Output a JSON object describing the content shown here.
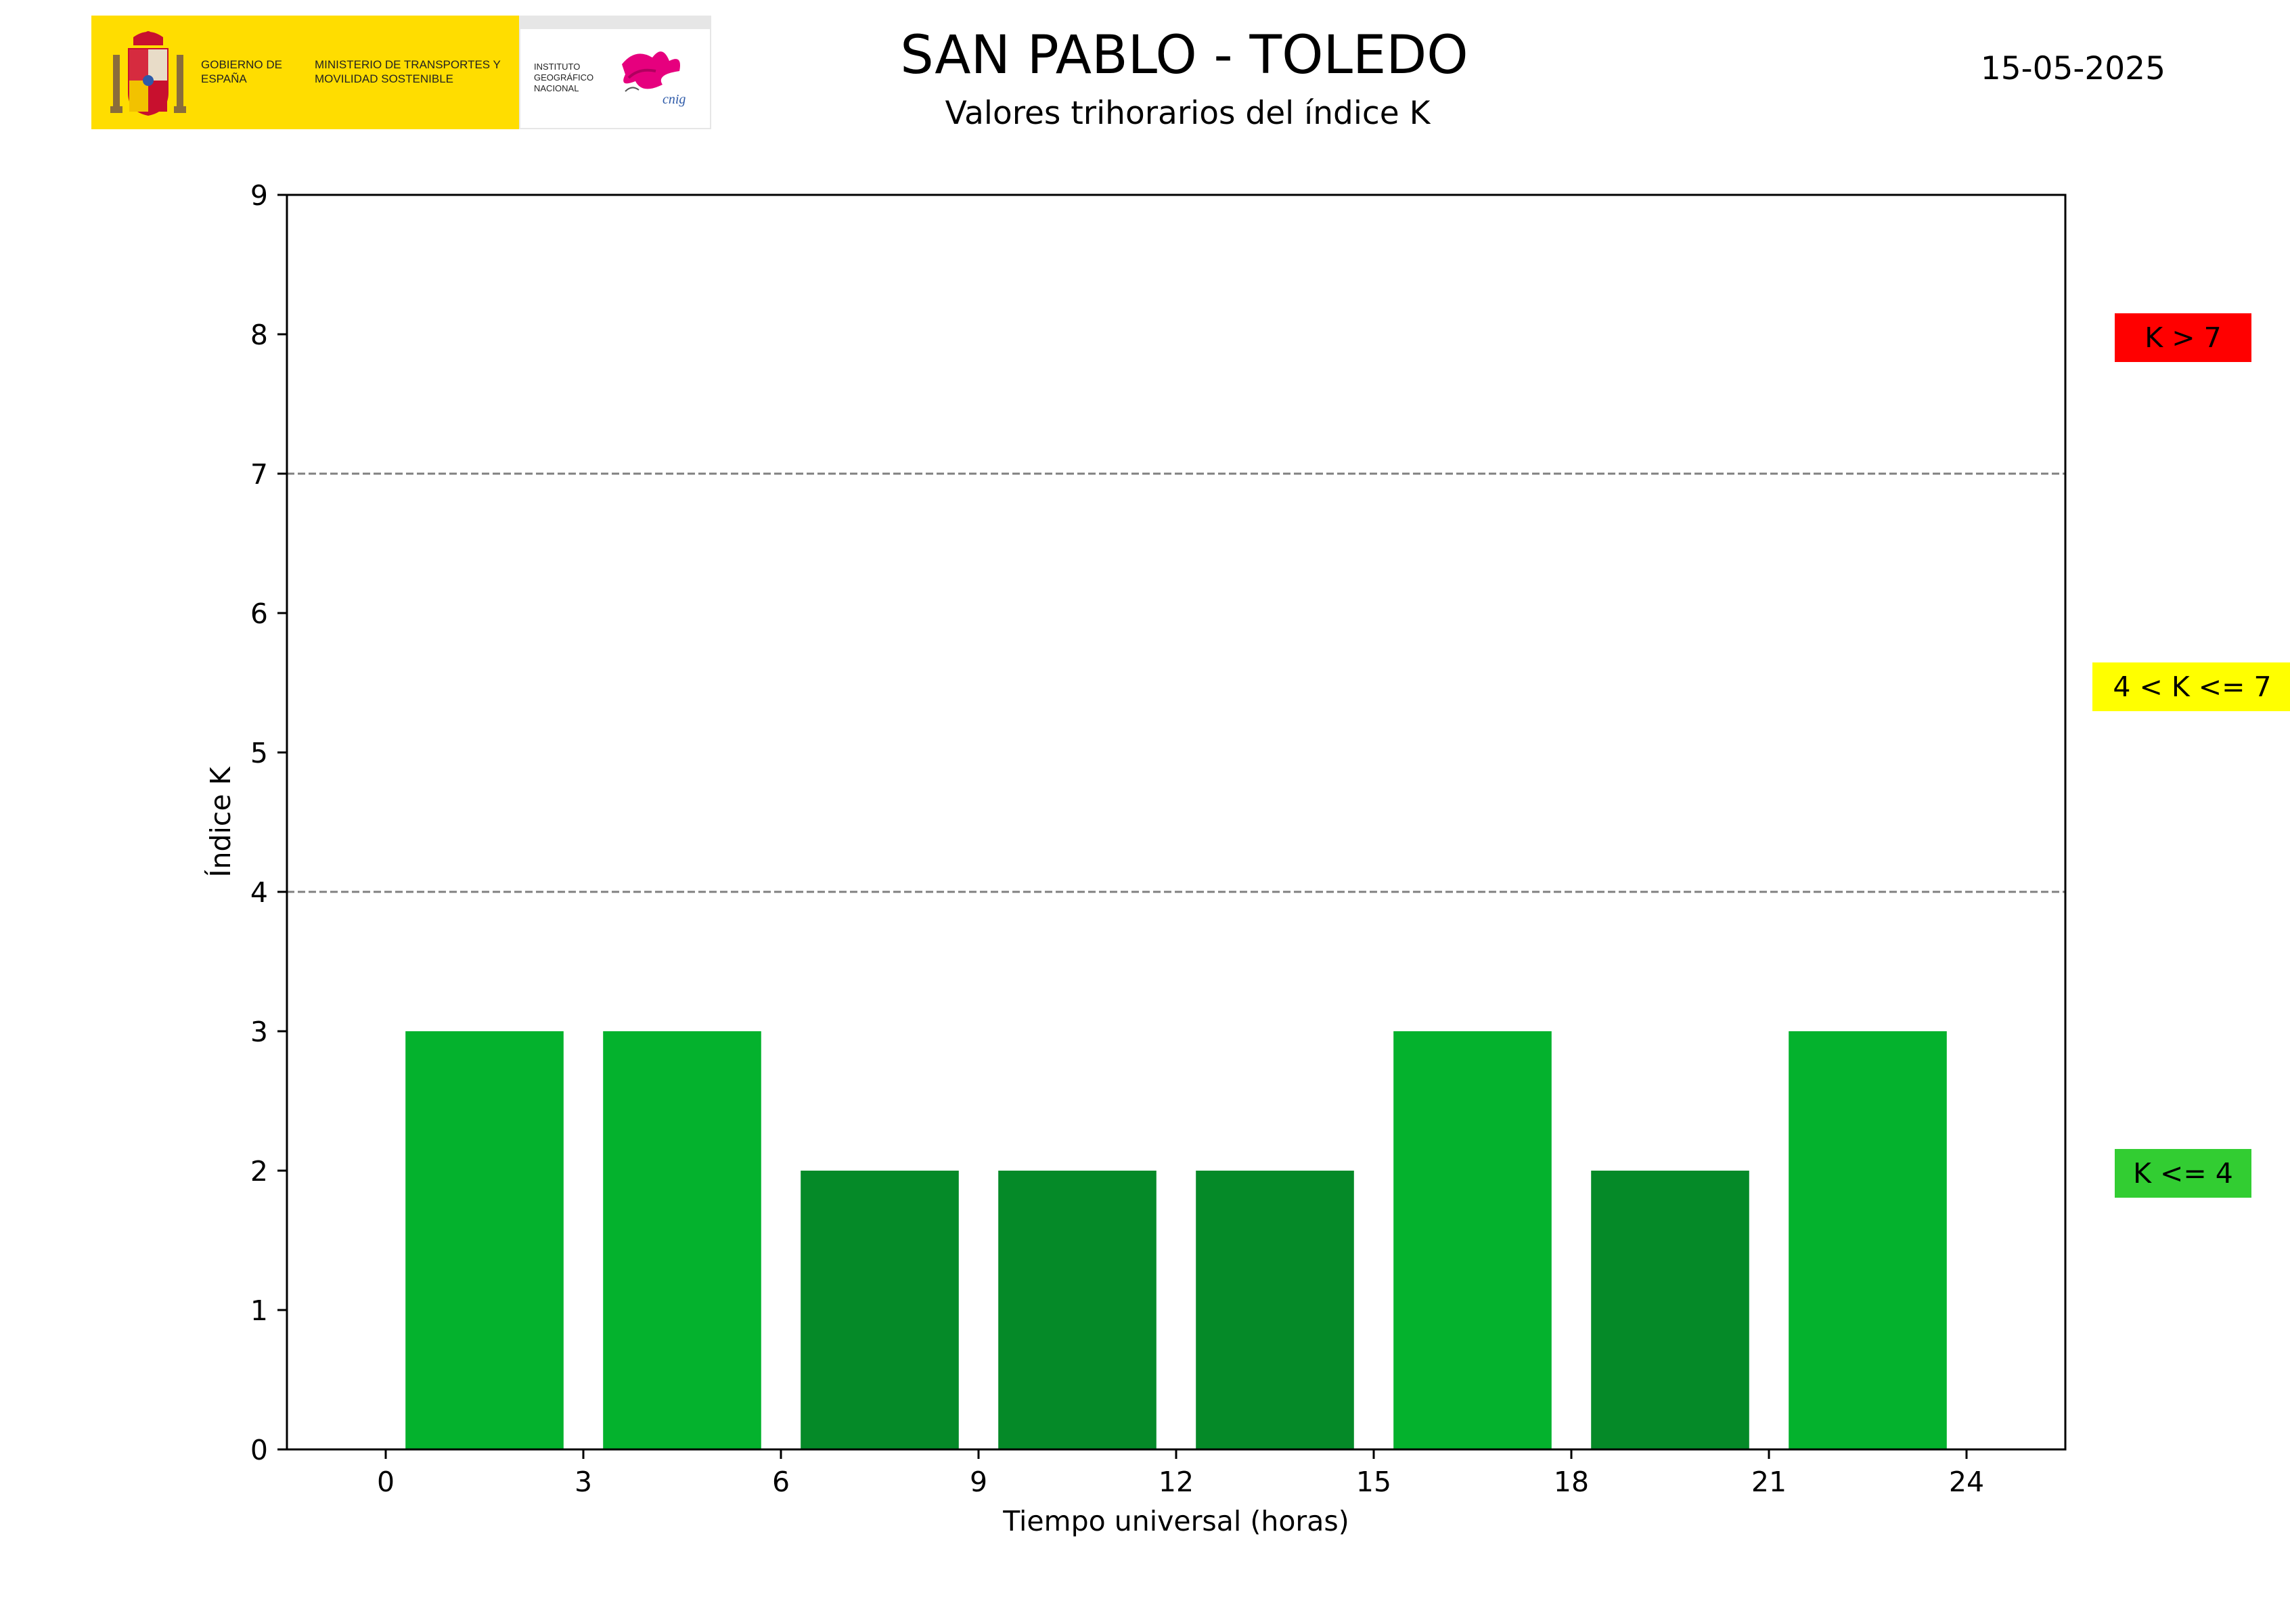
{
  "header": {
    "logo": {
      "gobierno_text": "GOBIERNO DE ESPAÑA",
      "ministerio_text": "MINISTERIO DE TRANSPORTES Y MOVILIDAD SOSTENIBLE",
      "instituto_text": "INSTITUTO GEOGRÁFICO NACIONAL",
      "cnig_text": "cnig",
      "colors": {
        "yellow": "#ffdd00",
        "pink": "#e6007e",
        "blue": "#2e5aa8"
      }
    },
    "title": "SAN PABLO - TOLEDO",
    "subtitle": "Valores trihorarios del índice K",
    "date": "15-05-2025"
  },
  "chart_data": {
    "type": "bar",
    "xlabel": "Tiempo universal (horas)",
    "ylabel": "Índice K",
    "xlim": [
      -1.5,
      25.5
    ],
    "ylim": [
      0,
      9
    ],
    "xticks": [
      0,
      3,
      6,
      9,
      12,
      15,
      18,
      21,
      24
    ],
    "yticks": [
      0,
      1,
      2,
      3,
      4,
      5,
      6,
      7,
      8,
      9
    ],
    "bar_width_hours": 2.4,
    "bars": [
      {
        "x": 1.5,
        "value": 3,
        "color": "#04b22d"
      },
      {
        "x": 4.5,
        "value": 3,
        "color": "#04b22d"
      },
      {
        "x": 7.5,
        "value": 2,
        "color": "#058a28"
      },
      {
        "x": 10.5,
        "value": 2,
        "color": "#058a28"
      },
      {
        "x": 13.5,
        "value": 2,
        "color": "#058a28"
      },
      {
        "x": 16.5,
        "value": 3,
        "color": "#04b22d"
      },
      {
        "x": 19.5,
        "value": 2,
        "color": "#058a28"
      },
      {
        "x": 22.5,
        "value": 3,
        "color": "#04b22d"
      }
    ],
    "threshold_lines": [
      4,
      7
    ],
    "threshold_line_style": "dashed gray",
    "grid": false
  },
  "levels": {
    "high": {
      "label": "K > 7",
      "color": "#ff0000"
    },
    "mid": {
      "label": "4 < K <= 7",
      "color": "#ffff00"
    },
    "low": {
      "label": "K <= 4",
      "color": "#32cd32"
    }
  }
}
